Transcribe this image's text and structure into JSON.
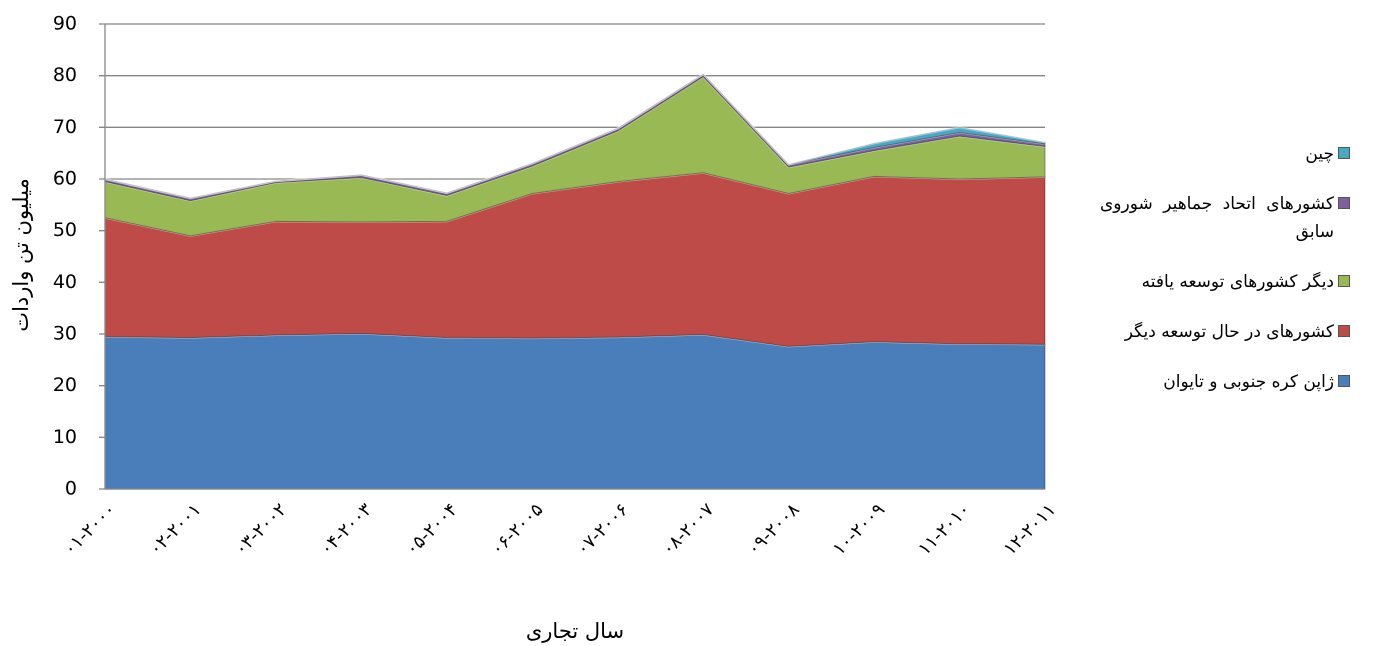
{
  "chart_data": {
    "type": "area",
    "stacked": true,
    "x_label": "سال تجاری",
    "y_label": "میلیون تن واردات",
    "categories": [
      "۰۱-۲۰۰۰",
      "۰۲-۲۰۰۱",
      "۰۳-۲۰۰۲",
      "۰۴-۲۰۰۳",
      "۰۵-۲۰۰۴",
      "۰۶-۲۰۰۵",
      "۰۷-۲۰۰۶",
      "۰۸-۲۰۰۷",
      "۰۹-۲۰۰۸",
      "۱۰-۲۰۰۹",
      "۱۱-۲۰۱۰",
      "۱۲-۲۰۱۱"
    ],
    "series": [
      {
        "name": "ژاپن کره جنوبی و تایوان",
        "color": "#4a7ebb",
        "values": [
          29.5,
          29.3,
          29.8,
          30.1,
          29.3,
          29.2,
          29.4,
          29.9,
          27.6,
          28.5,
          28.1,
          28.0
        ]
      },
      {
        "name": "کشورهای در حال توسعه دیگر",
        "color": "#be4b48",
        "values": [
          23.0,
          19.7,
          22.0,
          21.6,
          22.5,
          28.0,
          30.1,
          31.3,
          29.6,
          32.0,
          31.9,
          32.4
        ]
      },
      {
        "name": "دیگر کشورهای توسعه یافته",
        "color": "#98b954",
        "values": [
          7.0,
          6.8,
          7.5,
          8.6,
          5.0,
          5.3,
          9.8,
          18.6,
          5.1,
          5.0,
          8.3,
          5.9
        ]
      },
      {
        "name": "کشورهای اتحاد جماهیر شوروی سابق",
        "color": "#7d60a0",
        "values": [
          0.5,
          0.5,
          0.3,
          0.5,
          0.5,
          0.5,
          0.5,
          0.5,
          0.5,
          0.6,
          0.7,
          0.5
        ]
      },
      {
        "name": "چین",
        "color": "#46aac5",
        "values": [
          0,
          0,
          0,
          0,
          0,
          0,
          0,
          0,
          0,
          0.8,
          1.0,
          0.3
        ]
      }
    ],
    "ylim": [
      0,
      90
    ],
    "yticks": [
      0,
      10,
      20,
      30,
      40,
      50,
      60,
      70,
      80,
      90
    ],
    "grid": true,
    "legend": "right"
  }
}
